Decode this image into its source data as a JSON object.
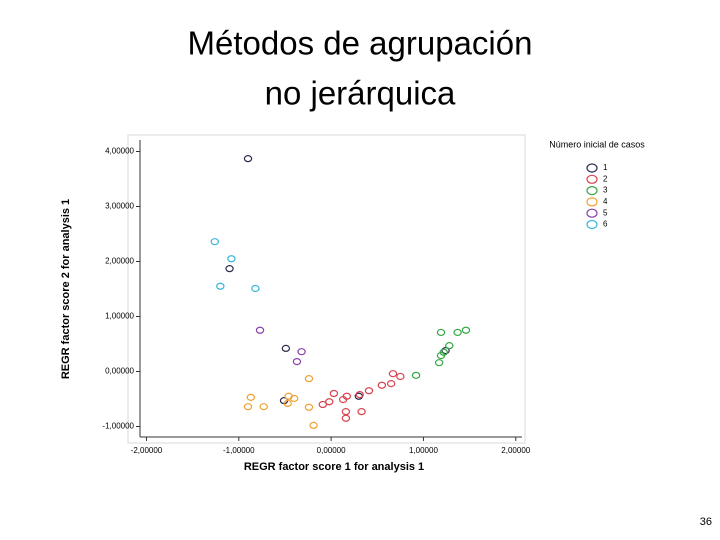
{
  "slide": {
    "title_line1": "Métodos de agrupación",
    "title_line2": "no jerárquica",
    "page_number": "36"
  },
  "chart_data": {
    "type": "scatter",
    "xlabel": "REGR factor score   1 for analysis 1",
    "ylabel": "REGR factor score   2 for analysis 1",
    "legend_title": "Número inicial de casos",
    "legend": "right",
    "grid": false,
    "xlim": [
      -2.2,
      2.1
    ],
    "ylim": [
      -1.3,
      4.3
    ],
    "xticks": [
      {
        "value": -2,
        "label": "-2,00000"
      },
      {
        "value": -1,
        "label": "-1,00000"
      },
      {
        "value": 0,
        "label": "0,00000"
      },
      {
        "value": 1,
        "label": "1,00000"
      },
      {
        "value": 2,
        "label": "2,00000"
      }
    ],
    "yticks": [
      {
        "value": -1,
        "label": "-1,00000"
      },
      {
        "value": 0,
        "label": "0,00000"
      },
      {
        "value": 1,
        "label": "1,00000"
      },
      {
        "value": 2,
        "label": "2,00000"
      },
      {
        "value": 3,
        "label": "3,00000"
      },
      {
        "value": 4,
        "label": "4,00000"
      }
    ],
    "series": [
      {
        "name": "1",
        "color": "#2b2b50",
        "x": [
          -0.9,
          -1.1,
          -0.49,
          -0.51,
          0.3,
          1.24
        ],
        "values": [
          3.87,
          1.87,
          0.42,
          -0.53,
          -0.45,
          0.38
        ]
      },
      {
        "name": "2",
        "color": "#d9434f",
        "x": [
          -0.09,
          -0.02,
          0.03,
          0.13,
          0.16,
          0.16,
          0.33,
          0.31,
          0.41,
          0.55,
          0.65,
          0.67,
          0.75,
          0.17
        ],
        "values": [
          -0.6,
          -0.55,
          -0.4,
          -0.51,
          -0.73,
          -0.85,
          -0.73,
          -0.42,
          -0.35,
          -0.25,
          -0.22,
          -0.04,
          -0.09,
          -0.45
        ]
      },
      {
        "name": "3",
        "color": "#33a845",
        "x": [
          0.92,
          1.19,
          1.37,
          1.46,
          1.17,
          1.19,
          1.28,
          1.22
        ],
        "values": [
          -0.07,
          0.71,
          0.71,
          0.75,
          0.16,
          0.29,
          0.47,
          0.35
        ]
      },
      {
        "name": "4",
        "color": "#f0a030",
        "x": [
          -0.87,
          -0.9,
          -0.73,
          -0.46,
          -0.4,
          -0.24,
          -0.24,
          -0.19,
          -0.47
        ],
        "values": [
          -0.47,
          -0.64,
          -0.64,
          -0.45,
          -0.49,
          -0.13,
          -0.65,
          -0.98,
          -0.58
        ]
      },
      {
        "name": "5",
        "color": "#8a3fa8",
        "x": [
          -0.77,
          -0.32,
          -0.37
        ],
        "values": [
          0.75,
          0.36,
          0.18
        ]
      },
      {
        "name": "6",
        "color": "#35b6d8",
        "x": [
          -1.26,
          -1.08,
          -1.2,
          -0.82
        ],
        "values": [
          2.36,
          2.05,
          1.55,
          1.51
        ]
      }
    ]
  }
}
